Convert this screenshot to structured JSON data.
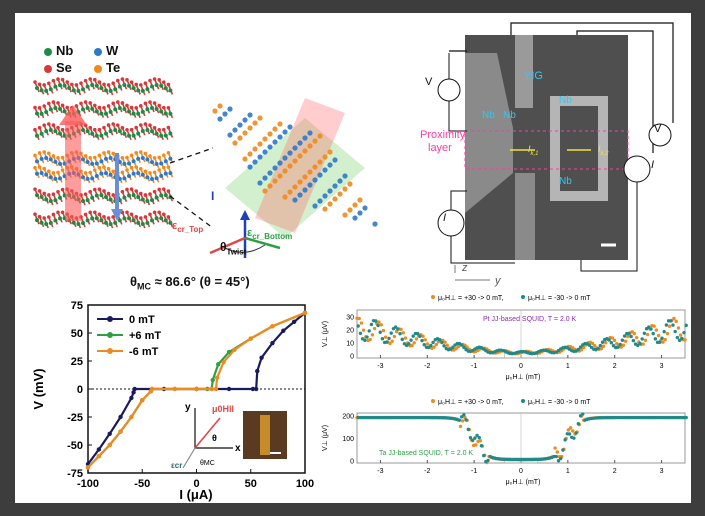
{
  "legend_atoms": {
    "nb": {
      "label": "Nb",
      "color": "#1e8c45"
    },
    "w": {
      "label": "W",
      "color": "#2f79c9"
    },
    "se": {
      "label": "Se",
      "color": "#d8383a"
    },
    "te": {
      "label": "Te",
      "color": "#f08a1e"
    }
  },
  "twist": {
    "e_top": "ε",
    "e_top_sub": "cr_Top",
    "e_bottom": "ε",
    "e_bottom_sub": "cr_Bottom",
    "theta": "θ",
    "theta_sub": "Twist",
    "i_label": "I"
  },
  "device": {
    "yig": "YIG",
    "nb_left_1": "Nb",
    "nb_left_2": "Nb",
    "nb_right_top": "Nb",
    "nb_right_bottom": "Nb",
    "proximity_line1": "Proximity",
    "proximity_line2": "layer",
    "ik1": "I",
    "ik1_sub": "k,1",
    "ik2": "I",
    "ik2_sub": "k,2",
    "v_left": "V",
    "v_right": "V",
    "i_left": "I",
    "i_right": "I",
    "axis_z": "z",
    "axis_y": "y"
  },
  "iv_plot": {
    "header": "θ",
    "header_sub": "MC",
    "header_rest": " ≈ 86.6° (θ = 45°)",
    "ylabel": "V (mV)",
    "xlabel": "I (μA)",
    "x_ticks": [
      "-100",
      "-50",
      "0",
      "50",
      "100"
    ],
    "y_ticks": [
      "75",
      "50",
      "25",
      "0",
      "-25",
      "-50",
      "-75"
    ],
    "legend": [
      "0 mT",
      "+6 mT",
      "-6 mT"
    ],
    "inset_x": "x",
    "inset_y": "y",
    "inset_h": "μ",
    "inset_h_sub": "0",
    "inset_h_rest": "H",
    "inset_h_sub2": "ll",
    "inset_theta": "θ",
    "inset_theta_mc": "θ",
    "inset_theta_mc_sub": "MC",
    "inset_ecr": "ε",
    "inset_ecr_sub": "cr"
  },
  "squid_top": {
    "legend_a": "μ₀H⊥ = +30 -> 0 mT,",
    "legend_b": "μ₀H⊥ = -30 -> 0 mT",
    "title": "Pt JJ-based SQUID, T = 2.0 K",
    "ylabel": "V⊥ (μV)",
    "xlabel": "μ₀H⊥ (mT)",
    "x_ticks": [
      "-3",
      "-2",
      "-1",
      "0",
      "1",
      "2",
      "3"
    ],
    "y_ticks": [
      "30",
      "20",
      "10",
      "0"
    ]
  },
  "squid_bottom": {
    "legend_a": "μ₀H⊥ = +30 -> 0 mT,",
    "legend_b": "μ₀H⊥ = -30 -> 0 mT",
    "title": "Ta JJ-based SQUID, T = 2.0 K",
    "ylabel": "V⊥ (μV)",
    "xlabel": "μ₀H⊥ (mT)",
    "x_ticks": [
      "-3",
      "-2",
      "-1",
      "0",
      "1",
      "2",
      "3"
    ],
    "y_ticks": [
      "200",
      "100",
      "0"
    ]
  },
  "chart_data": [
    {
      "type": "line",
      "title": "θMC ≈ 86.6° (θ = 45°)",
      "xlabel": "I (μA)",
      "ylabel": "V (mV)",
      "xlim": [
        -100,
        100
      ],
      "ylim": [
        -75,
        75
      ],
      "series": [
        {
          "name": "0 mT",
          "color": "#1a1a5e",
          "x": [
            -100,
            -90,
            -80,
            -70,
            -60,
            -58,
            -57,
            -30,
            0,
            30,
            52,
            55,
            56,
            60,
            70,
            80,
            90,
            100
          ],
          "y": [
            -67,
            -54,
            -40,
            -25,
            -8,
            -3,
            0,
            0,
            0,
            0,
            0,
            0,
            16,
            28,
            41,
            52,
            60,
            68
          ]
        },
        {
          "name": "+6 mT",
          "color": "#2ea043",
          "x": [
            -100,
            -90,
            -80,
            -70,
            -60,
            -50,
            -42,
            -41,
            -20,
            0,
            10,
            14,
            15,
            20,
            30,
            50,
            70,
            100
          ],
          "y": [
            -70,
            -60,
            -50,
            -38,
            -25,
            -10,
            -2,
            0,
            0,
            0,
            0,
            0,
            8,
            22,
            33,
            45,
            56,
            68
          ]
        },
        {
          "name": "-6 mT",
          "color": "#f08a1e",
          "x": [
            -100,
            -90,
            -80,
            -70,
            -60,
            -50,
            -42,
            -41,
            -20,
            0,
            14,
            18,
            19,
            25,
            35,
            50,
            70,
            100
          ],
          "y": [
            -70,
            -60,
            -50,
            -38,
            -25,
            -10,
            -2,
            0,
            0,
            0,
            0,
            0,
            10,
            24,
            35,
            45,
            56,
            68
          ]
        }
      ]
    },
    {
      "type": "scatter",
      "title": "Pt JJ-based SQUID, T = 2.0 K",
      "xlabel": "μ₀H⊥ (mT)",
      "ylabel": "V⊥ (μV)",
      "xlim": [
        -3.5,
        3.5
      ],
      "ylim": [
        -2,
        35
      ],
      "series": [
        {
          "name": "μ₀H⊥ = +30 -> 0 mT",
          "color": "#f08a1e"
        },
        {
          "name": "μ₀H⊥ = -30 -> 0 mT",
          "color": "#1f8a8a"
        }
      ]
    },
    {
      "type": "scatter",
      "title": "Ta JJ-based SQUID, T = 2.0 K",
      "xlabel": "μ₀H⊥ (mT)",
      "ylabel": "V⊥ (μV)",
      "xlim": [
        -3.5,
        3.5
      ],
      "ylim": [
        -10,
        210
      ],
      "series": [
        {
          "name": "μ₀H⊥ = +30 -> 0 mT",
          "color": "#f08a1e"
        },
        {
          "name": "μ₀H⊥ = -30 -> 0 mT",
          "color": "#1f8a8a"
        }
      ]
    }
  ]
}
